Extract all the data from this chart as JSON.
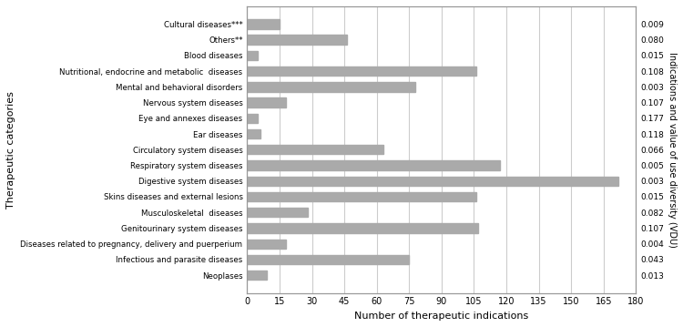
{
  "categories": [
    "Neoplases",
    "Infectious and parasite diseases",
    "Diseases related to pregnancy, delivery and puerperium",
    "Genitourinary system diseases",
    "Musculoskeletal  diseases",
    "Skins diseases and external lesions",
    "Digestive system diseases",
    "Respiratory system diseases",
    "Circulatory system diseases",
    "Ear diseases",
    "Eye and annexes diseases",
    "Nervous system diseases",
    "Mental and behavioral disorders",
    "Nutritional, endocrine and metabolic  diseases",
    "Blood diseases",
    "Others**",
    "Cultural diseases***"
  ],
  "values": [
    9,
    75,
    18,
    107,
    28,
    106,
    172,
    117,
    63,
    6,
    5,
    18,
    78,
    106,
    5,
    46,
    15
  ],
  "vdu_values": [
    "0.009",
    "0.080",
    "0.015",
    "0.108",
    "0.003",
    "0.107",
    "0.177",
    "0.118",
    "0.066",
    "0.005",
    "0.003",
    "0.015",
    "0.082",
    "0.107",
    "0.004",
    "0.043",
    "0.013"
  ],
  "bar_color": "#aaaaaa",
  "xlabel": "Number of therapeutic indications",
  "ylabel_left": "Therapeutic categories",
  "ylabel_right": "Indications and value of use diversity (VDU)",
  "xlim": [
    0,
    180
  ],
  "xticks": [
    0,
    15,
    30,
    45,
    60,
    75,
    90,
    105,
    120,
    135,
    150,
    165,
    180
  ],
  "grid_color": "#cccccc",
  "bar_height": 0.6,
  "figure_facecolor": "#ffffff"
}
